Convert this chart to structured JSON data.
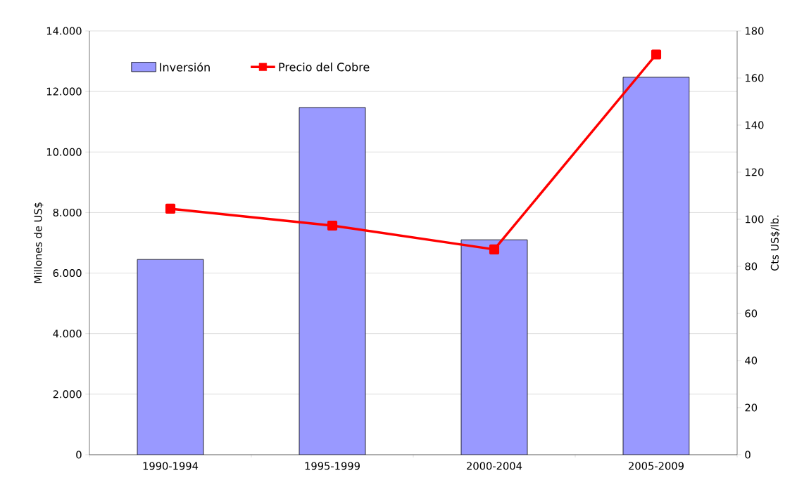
{
  "chart_data": {
    "type": "bar",
    "categories": [
      "1990-1994",
      "1995-1999",
      "2000-2004",
      "2005-2009"
    ],
    "ylabel": "Millones de US$",
    "y2label": "Cts US$/lb.",
    "ylim": [
      0,
      14000
    ],
    "yticks": [
      {
        "value": 0,
        "label": "0"
      },
      {
        "value": 2000,
        "label": "2.000"
      },
      {
        "value": 4000,
        "label": "4.000"
      },
      {
        "value": 6000,
        "label": "6.000"
      },
      {
        "value": 8000,
        "label": "8.000"
      },
      {
        "value": 10000,
        "label": "10.000"
      },
      {
        "value": 12000,
        "label": "12.000"
      },
      {
        "value": 14000,
        "label": "14.000"
      }
    ],
    "y2lim": [
      0,
      180
    ],
    "y2ticks": [
      0,
      20,
      40,
      60,
      80,
      100,
      120,
      140,
      160,
      180
    ],
    "grid": "y",
    "legend": "top left",
    "marker": "square",
    "series": [
      {
        "name": "Inversión",
        "color": "#9999ff",
        "values": [
          6450,
          11470,
          7100,
          12470
        ]
      },
      {
        "name": "Precio del Cobre",
        "type": "line",
        "axis": "y2",
        "color": "#ff0000",
        "values": [
          104.5,
          97.3,
          87.2,
          170
        ]
      }
    ]
  }
}
